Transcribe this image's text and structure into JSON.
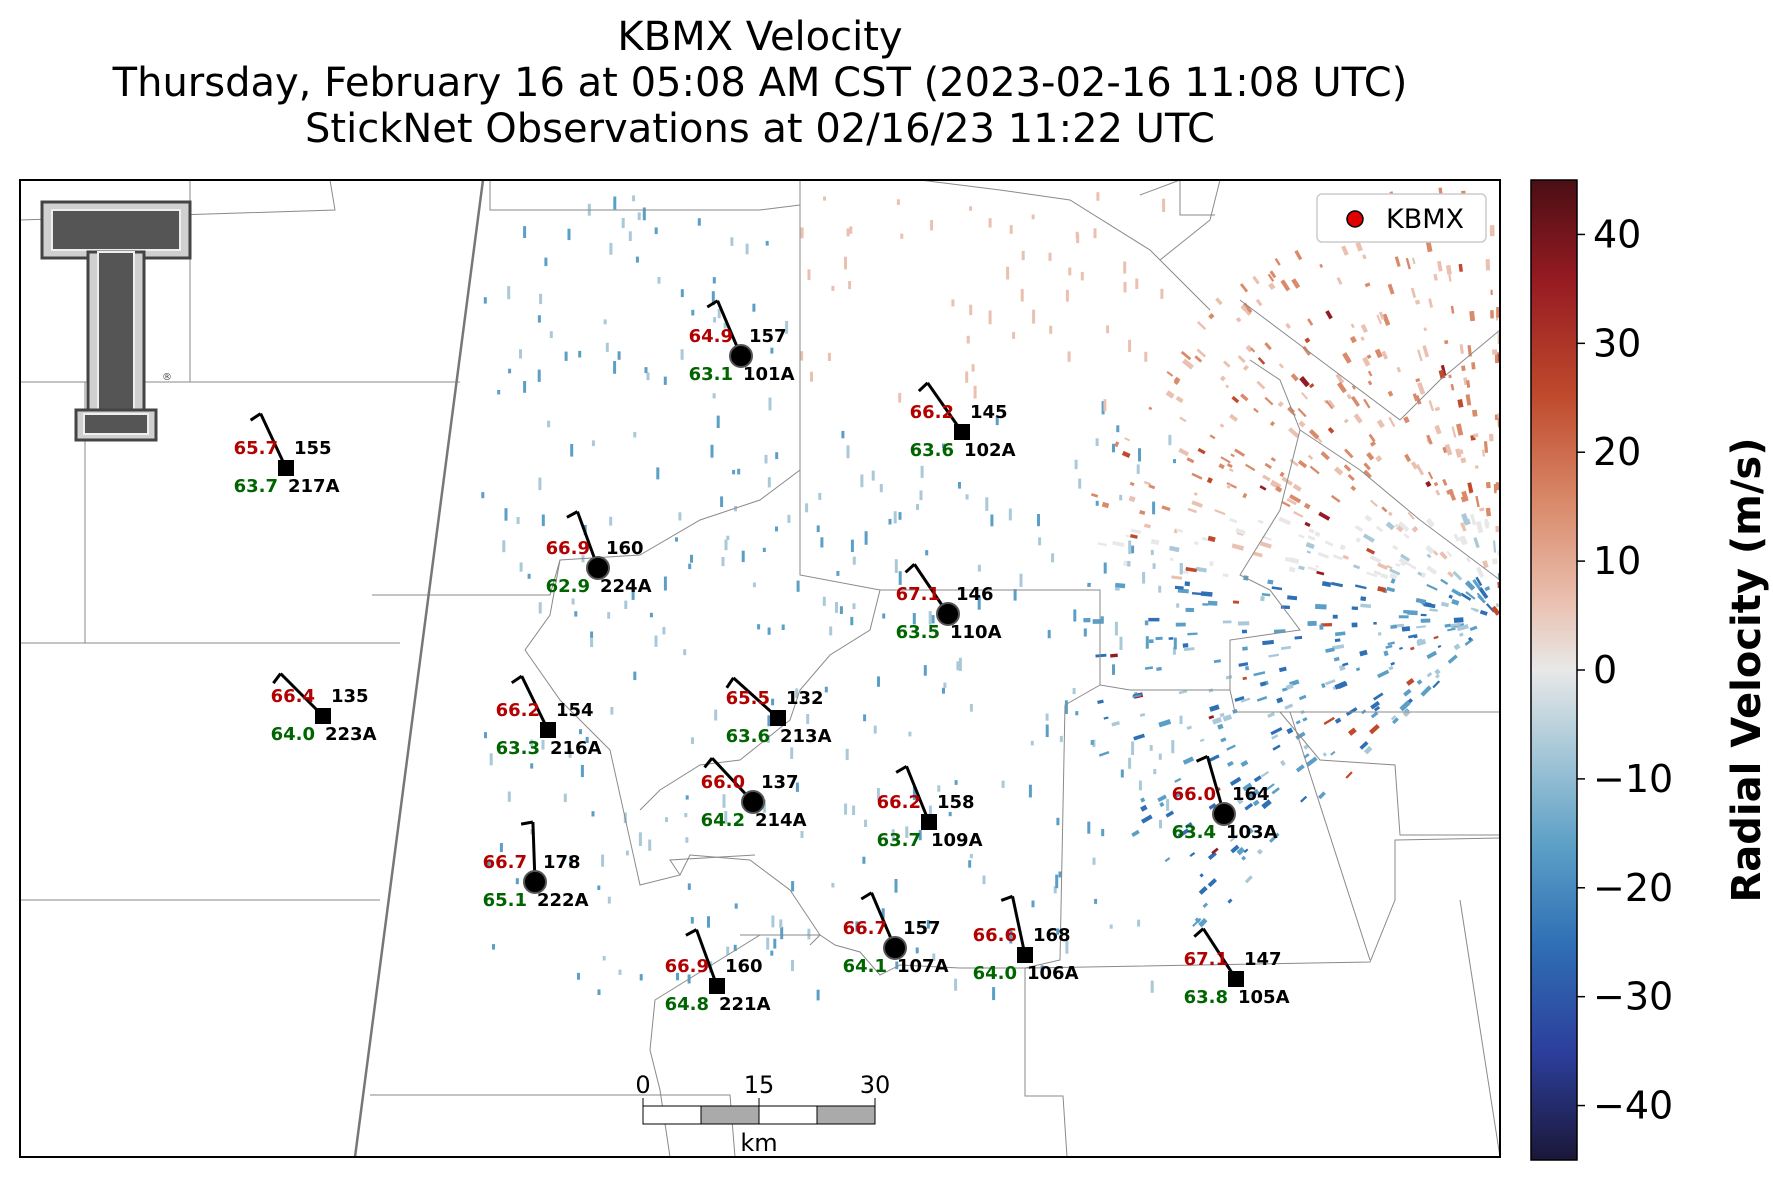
{
  "title": {
    "line1": "KBMX Velocity",
    "line2": "Thursday, February 16 at 05:08 AM CST (2023-02-16 11:08 UTC)",
    "line3": "StickNet Observations at 02/16/23 11:22 UTC"
  },
  "legend": {
    "label": "KBMX",
    "marker_color": "#e00000"
  },
  "colorbar": {
    "label": "Radial Velocity (m/s)",
    "ticks": [
      "40",
      "30",
      "20",
      "10",
      "0",
      "−10",
      "−20",
      "−30",
      "−40"
    ],
    "tick_values": [
      40,
      30,
      20,
      10,
      0,
      -10,
      -20,
      -30,
      -40
    ],
    "range": [
      -45,
      45
    ],
    "colors": [
      "#1b1738",
      "#2c3f9c",
      "#2f6fb5",
      "#5c9fc6",
      "#a9c9d8",
      "#e8e8e8",
      "#eac0b0",
      "#d98a6a",
      "#bf4a2c",
      "#951a22",
      "#4a0f14"
    ]
  },
  "scalebar": {
    "ticks": [
      "0",
      "15",
      "30"
    ],
    "unit": "km"
  },
  "logo": {
    "name": "Texas Tech Double T"
  },
  "stations": [
    {
      "id": "101A",
      "temp": "64.9",
      "dew": "63.1",
      "dir": "157",
      "marker": "circle"
    },
    {
      "id": "102A",
      "temp": "66.2",
      "dew": "63.6",
      "dir": "145",
      "marker": "square"
    },
    {
      "id": "217A",
      "temp": "65.7",
      "dew": "63.7",
      "dir": "155",
      "marker": "square"
    },
    {
      "id": "224A",
      "temp": "66.9",
      "dew": "62.9",
      "dir": "160",
      "marker": "circle"
    },
    {
      "id": "110A",
      "temp": "67.1",
      "dew": "63.5",
      "dir": "146",
      "marker": "circle"
    },
    {
      "id": "223A",
      "temp": "66.4",
      "dew": "64.0",
      "dir": "135",
      "marker": "square"
    },
    {
      "id": "216A",
      "temp": "66.2",
      "dew": "63.3",
      "dir": "154",
      "marker": "square"
    },
    {
      "id": "213A",
      "temp": "65.5",
      "dew": "63.6",
      "dir": "132",
      "marker": "square"
    },
    {
      "id": "214A",
      "temp": "66.0",
      "dew": "64.2",
      "dir": "137",
      "marker": "circle"
    },
    {
      "id": "109A",
      "temp": "66.2",
      "dew": "63.7",
      "dir": "158",
      "marker": "square"
    },
    {
      "id": "103A",
      "temp": "66.0",
      "dew": "63.4",
      "dir": "164",
      "marker": "circle"
    },
    {
      "id": "222A",
      "temp": "66.7",
      "dew": "65.1",
      "dir": "178",
      "marker": "circle"
    },
    {
      "id": "107A",
      "temp": "66.7",
      "dew": "64.1",
      "dir": "157",
      "marker": "circle"
    },
    {
      "id": "106A",
      "temp": "66.6",
      "dew": "64.0",
      "dir": "168",
      "marker": "square"
    },
    {
      "id": "221A",
      "temp": "66.9",
      "dew": "64.8",
      "dir": "160",
      "marker": "square"
    },
    {
      "id": "105A",
      "temp": "67.1",
      "dew": "63.8",
      "dir": "147",
      "marker": "square"
    }
  ]
}
